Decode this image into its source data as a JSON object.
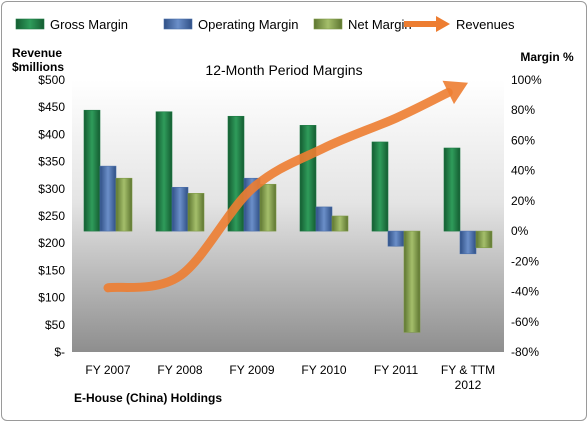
{
  "chart_data": {
    "type": "bar",
    "title": "12-Month Period Margins",
    "company": "E-House (China) Holdings",
    "left_axis_label": [
      "Revenue",
      "$millions"
    ],
    "right_axis_label": "Margin %",
    "categories": [
      "FY 2007",
      "FY 2008",
      "FY 2009",
      "FY 2010",
      "FY 2011",
      [
        "FY & TTM",
        "2012"
      ]
    ],
    "left_axis": {
      "min": 0,
      "max": 500,
      "step": 50,
      "tick_labels": [
        "$-",
        "$50",
        "$100",
        "$150",
        "$200",
        "$250",
        "$300",
        "$350",
        "$400",
        "$450",
        "$500"
      ]
    },
    "right_axis": {
      "min": -80,
      "max": 100,
      "step": 20,
      "tick_labels": [
        "-80%",
        "-60%",
        "-40%",
        "-20%",
        "0%",
        "20%",
        "40%",
        "60%",
        "80%",
        "100%"
      ]
    },
    "series": [
      {
        "name": "Gross Margin",
        "axis": "right",
        "color": "#1f7a45",
        "values": [
          80,
          79,
          76,
          70,
          59,
          55
        ]
      },
      {
        "name": "Operating Margin",
        "axis": "right",
        "color": "#4a6ea9",
        "values": [
          43,
          29,
          35,
          16,
          -10,
          -15
        ]
      },
      {
        "name": "Net Margin",
        "axis": "right",
        "color": "#7f9a47",
        "values": [
          35,
          25,
          31,
          10,
          -67,
          -11
        ]
      },
      {
        "name": "Revenues",
        "axis": "left",
        "type": "line",
        "color": "#ed7d31",
        "values": [
          118,
          140,
          300,
          375,
          430,
          495
        ]
      }
    ],
    "legend_position": "top",
    "grid": false
  }
}
